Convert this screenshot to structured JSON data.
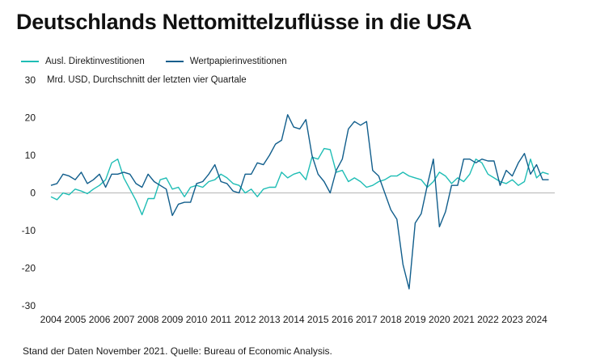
{
  "chart_data": {
    "type": "line",
    "title": "Deutschlands Nettomittelzuflüsse in die USA",
    "unit_label": "Mrd. USD, Durchschnitt der letzten vier Quartale",
    "ylim": [
      -30,
      30
    ],
    "yticks": [
      -30,
      -20,
      -10,
      0,
      10,
      20,
      30
    ],
    "xlim": [
      2004.0,
      2024.75
    ],
    "xticks": [
      "2004",
      "2005",
      "2006",
      "2007",
      "2008",
      "2009",
      "2010",
      "2011",
      "2012",
      "2013",
      "2014",
      "2015",
      "2016",
      "2017",
      "2018",
      "2019",
      "2020",
      "2021",
      "2022",
      "2023",
      "2024"
    ],
    "grid": false,
    "legend_position": "top-left",
    "series": [
      {
        "name": "Ausl. Direktinvestitionen",
        "color": "#1fbdb5",
        "x": [
          2004.0,
          2004.25,
          2004.5,
          2004.75,
          2005.0,
          2005.25,
          2005.5,
          2005.75,
          2006.0,
          2006.25,
          2006.5,
          2006.75,
          2007.0,
          2007.25,
          2007.5,
          2007.75,
          2008.0,
          2008.25,
          2008.5,
          2008.75,
          2009.0,
          2009.25,
          2009.5,
          2009.75,
          2010.0,
          2010.25,
          2010.5,
          2010.75,
          2011.0,
          2011.25,
          2011.5,
          2011.75,
          2012.0,
          2012.25,
          2012.5,
          2012.75,
          2013.0,
          2013.25,
          2013.5,
          2013.75,
          2014.0,
          2014.25,
          2014.5,
          2014.75,
          2015.0,
          2015.25,
          2015.5,
          2015.75,
          2016.0,
          2016.25,
          2016.5,
          2016.75,
          2017.0,
          2017.25,
          2017.5,
          2017.75,
          2018.0,
          2018.25,
          2018.5,
          2018.75,
          2019.0,
          2019.25,
          2019.5,
          2019.75,
          2020.0,
          2020.25,
          2020.5,
          2020.75,
          2021.0,
          2021.25,
          2021.5,
          2021.75,
          2022.0,
          2022.25,
          2022.5,
          2022.75,
          2023.0,
          2023.25,
          2023.5,
          2023.75,
          2024.0,
          2024.25,
          2024.5
        ],
        "values": [
          -1.0,
          -1.8,
          0.0,
          -0.5,
          1.0,
          0.5,
          -0.2,
          1.0,
          2.0,
          3.5,
          8.0,
          9.0,
          4.0,
          1.0,
          -2.0,
          -5.8,
          -1.5,
          -1.5,
          3.5,
          4.0,
          1.0,
          1.5,
          -1.0,
          1.5,
          2.0,
          1.5,
          3.0,
          3.5,
          5.0,
          4.0,
          2.5,
          2.0,
          0.0,
          1.0,
          -1.0,
          1.0,
          1.5,
          1.5,
          5.5,
          4.0,
          5.0,
          5.5,
          3.5,
          9.5,
          9.0,
          11.8,
          11.5,
          5.5,
          6.0,
          3.0,
          4.0,
          3.0,
          1.5,
          2.0,
          3.0,
          3.5,
          4.5,
          4.5,
          5.5,
          4.5,
          4.0,
          3.5,
          1.5,
          3.0,
          5.5,
          4.5,
          2.5,
          4.0,
          3.0,
          5.0,
          9.0,
          8.0,
          5.0,
          4.0,
          3.0,
          2.5,
          3.5,
          2.0,
          3.0,
          9.0,
          4.0,
          5.5,
          5.0
        ]
      },
      {
        "name": "Wertpapierinvestitionen",
        "color": "#115e8c",
        "x": [
          2004.0,
          2004.25,
          2004.5,
          2004.75,
          2005.0,
          2005.25,
          2005.5,
          2005.75,
          2006.0,
          2006.25,
          2006.5,
          2006.75,
          2007.0,
          2007.25,
          2007.5,
          2007.75,
          2008.0,
          2008.25,
          2008.5,
          2008.75,
          2009.0,
          2009.25,
          2009.5,
          2009.75,
          2010.0,
          2010.25,
          2010.5,
          2010.75,
          2011.0,
          2011.25,
          2011.5,
          2011.75,
          2012.0,
          2012.25,
          2012.5,
          2012.75,
          2013.0,
          2013.25,
          2013.5,
          2013.75,
          2014.0,
          2014.25,
          2014.5,
          2014.75,
          2015.0,
          2015.25,
          2015.5,
          2015.75,
          2016.0,
          2016.25,
          2016.5,
          2016.75,
          2017.0,
          2017.25,
          2017.5,
          2017.75,
          2018.0,
          2018.25,
          2018.5,
          2018.75,
          2019.0,
          2019.25,
          2019.5,
          2019.75,
          2020.0,
          2020.25,
          2020.5,
          2020.75,
          2021.0,
          2021.25,
          2021.5,
          2021.75,
          2022.0,
          2022.25,
          2022.5,
          2022.75,
          2023.0,
          2023.25,
          2023.5,
          2023.75,
          2024.0,
          2024.25,
          2024.5
        ],
        "values": [
          2.0,
          2.5,
          5.0,
          4.5,
          3.5,
          5.5,
          2.5,
          3.5,
          5.0,
          1.5,
          5.0,
          5.0,
          5.5,
          5.0,
          2.5,
          1.5,
          5.0,
          3.0,
          2.0,
          1.0,
          -6.0,
          -3.0,
          -2.5,
          -2.5,
          2.5,
          3.0,
          5.0,
          7.5,
          3.0,
          2.5,
          0.5,
          0.0,
          5.0,
          5.0,
          8.0,
          7.5,
          10.0,
          13.0,
          14.0,
          20.8,
          17.5,
          17.0,
          19.5,
          10.0,
          5.0,
          3.0,
          0.0,
          6.0,
          9.0,
          17.0,
          19.0,
          18.0,
          19.0,
          6.0,
          4.5,
          0.0,
          -4.5,
          -7.0,
          -19.0,
          -25.5,
          -8.0,
          -5.5,
          2.0,
          9.0,
          -9.0,
          -5.0,
          2.0,
          2.0,
          9.0,
          9.0,
          8.0,
          9.0,
          8.5,
          8.5,
          2.0,
          6.0,
          4.5,
          8.0,
          10.5,
          5.0,
          7.5,
          3.5,
          3.5
        ]
      }
    ]
  },
  "footer": "Stand der Daten November 2021. Quelle: Bureau of Economic Analysis."
}
